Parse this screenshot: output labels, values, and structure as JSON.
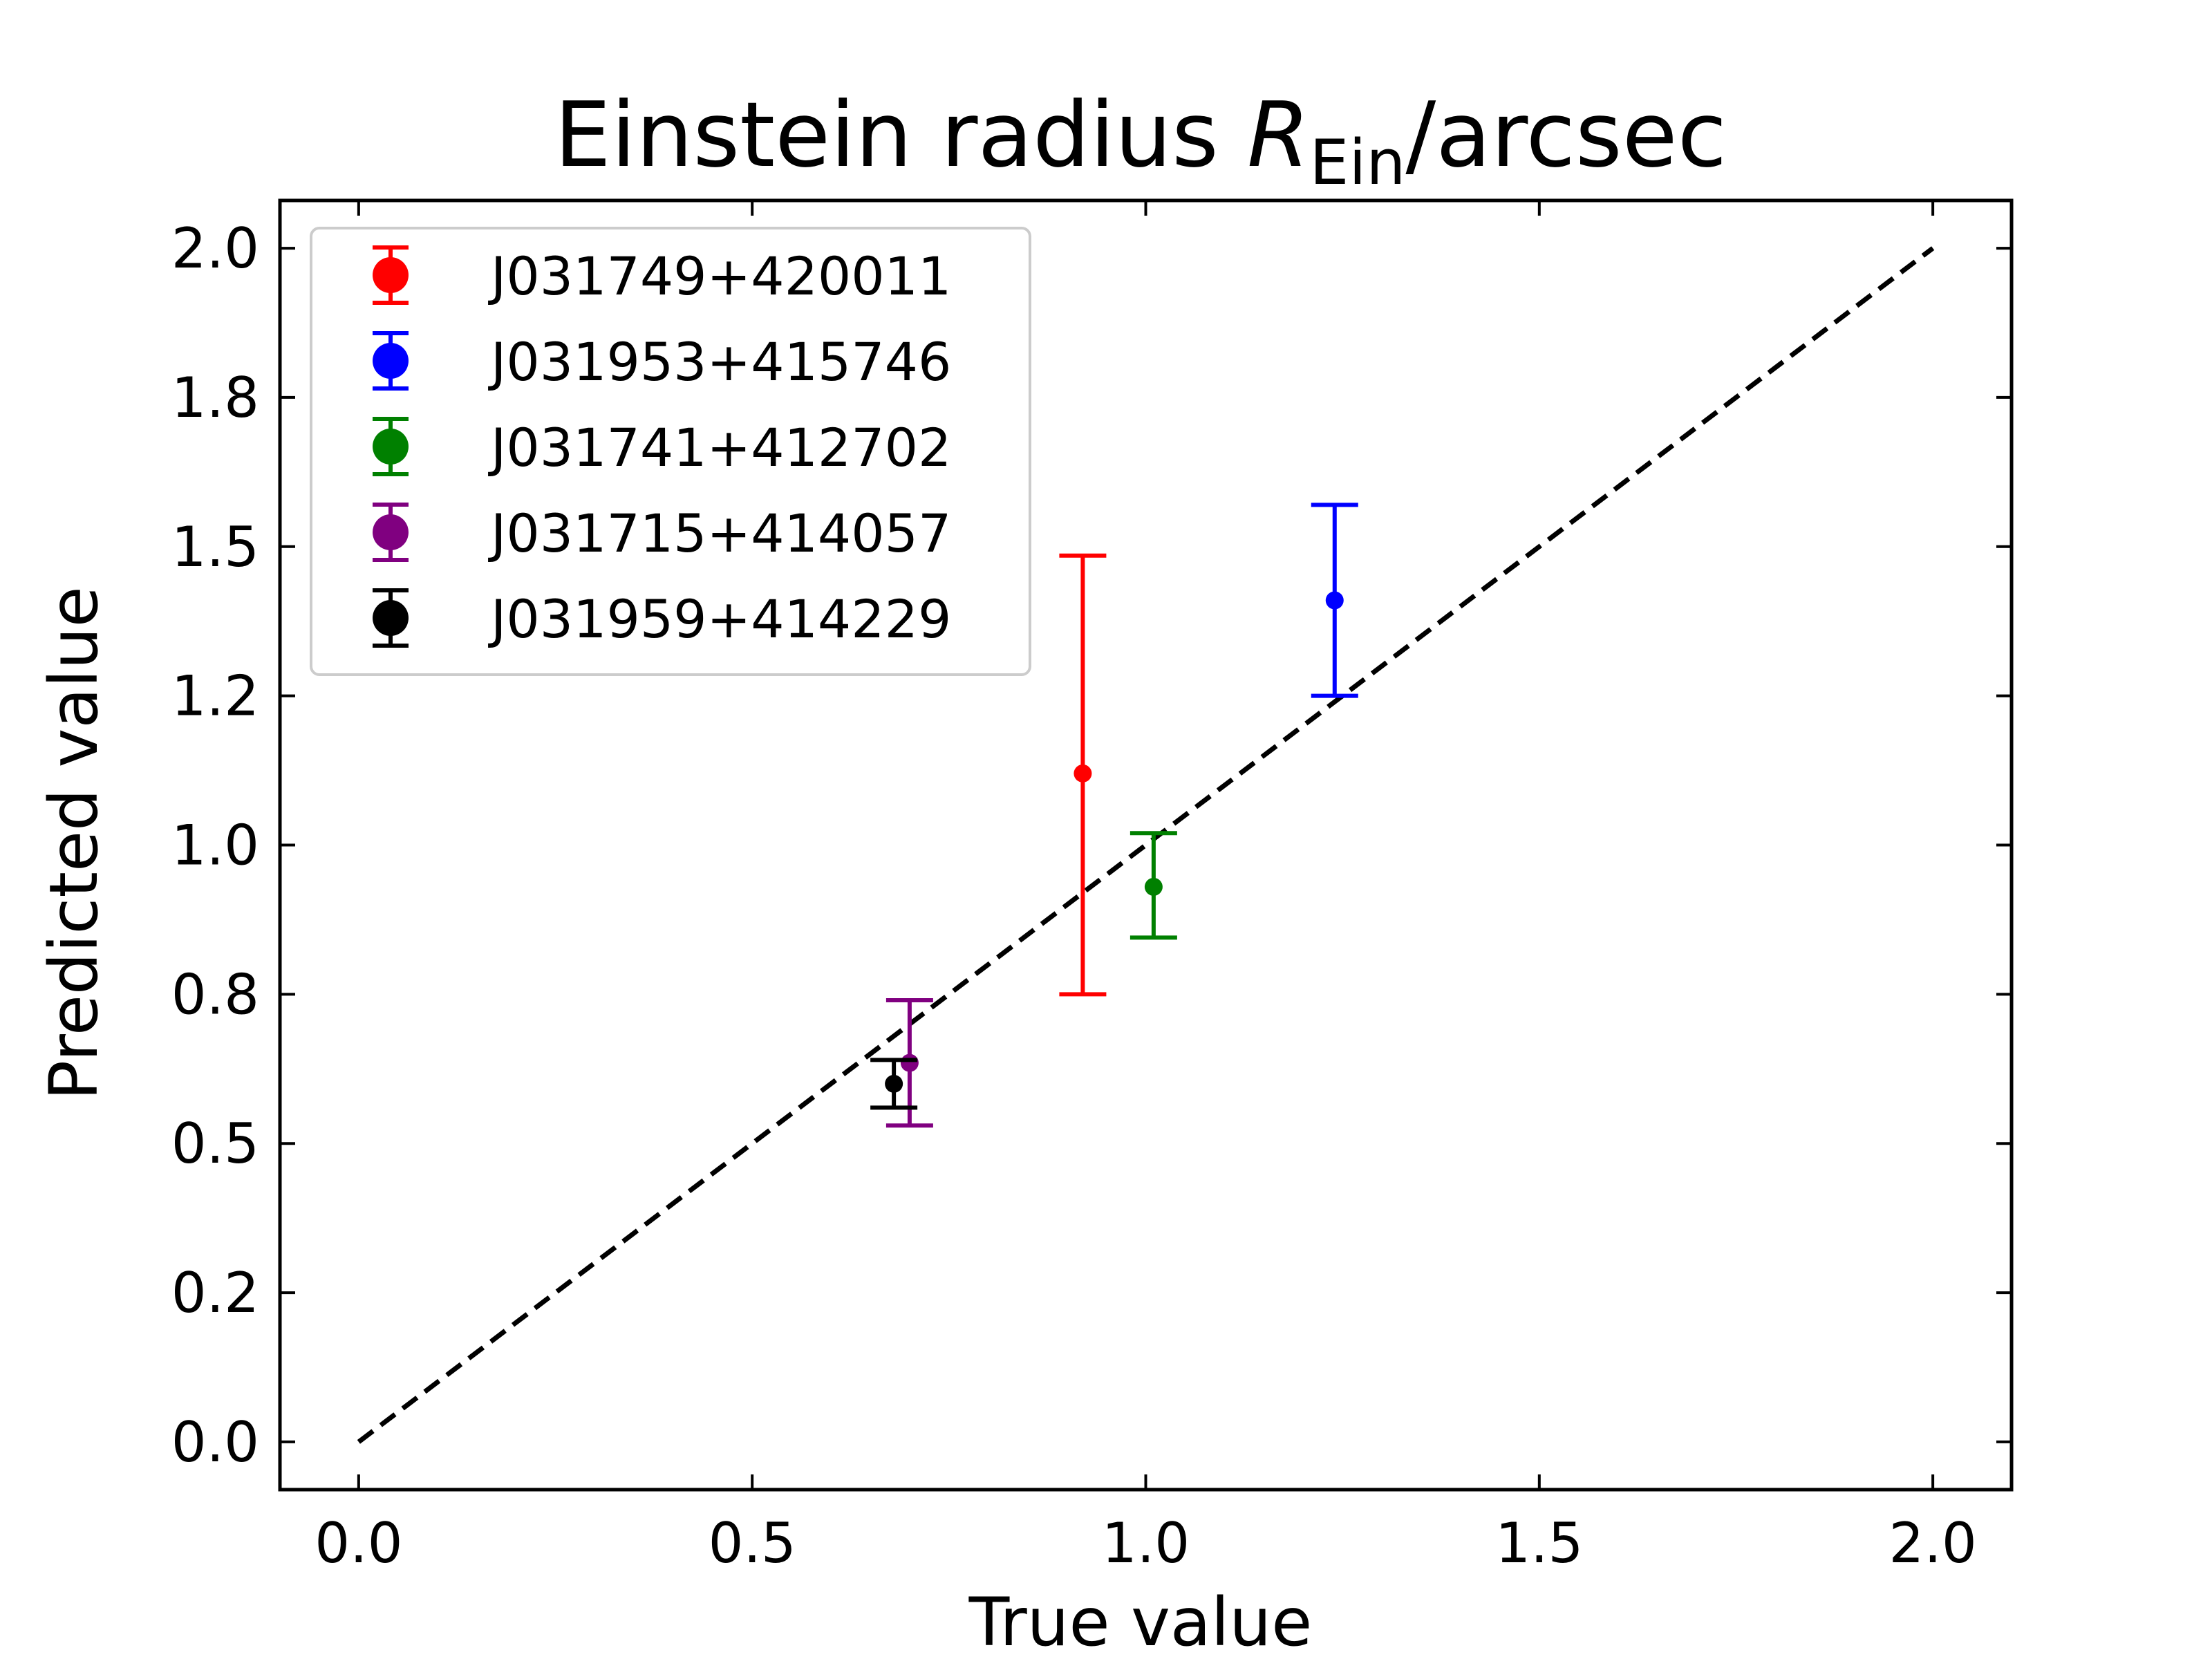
{
  "chart_data": {
    "type": "scatter",
    "title": {
      "main": "Einstein radius ",
      "symbol": "R",
      "subscript": "Ein",
      "suffix": "/arcsec"
    },
    "xlabel": "True value",
    "ylabel": "Predicted value",
    "xlim": [
      -0.1,
      2.1
    ],
    "ylim": [
      -0.08,
      2.08
    ],
    "xticks": [
      0.0,
      0.5,
      1.0,
      1.5,
      2.0
    ],
    "xtick_labels": [
      "0.0",
      "0.5",
      "1.0",
      "1.5",
      "2.0"
    ],
    "yticks": [
      0.0,
      0.25,
      0.5,
      0.75,
      1.0,
      1.25,
      1.5,
      1.75,
      2.0
    ],
    "ytick_labels": [
      "0.0",
      "0.2",
      "0.5",
      "0.8",
      "1.0",
      "1.2",
      "1.5",
      "1.8",
      "2.0"
    ],
    "reference_line": {
      "x": [
        0,
        2
      ],
      "y": [
        0,
        2
      ],
      "style": "dashed",
      "color": "#000000"
    },
    "legend_position": "upper-left",
    "grid": false,
    "series": [
      {
        "name": "J031749+420011",
        "color": "#ff0000",
        "x": 0.92,
        "y": 1.12,
        "yerr_low": 0.75,
        "yerr_high": 1.485
      },
      {
        "name": "J031953+415746",
        "color": "#0000ff",
        "x": 1.24,
        "y": 1.41,
        "yerr_low": 1.25,
        "yerr_high": 1.57
      },
      {
        "name": "J031741+412702",
        "color": "#008000",
        "x": 1.01,
        "y": 0.93,
        "yerr_low": 0.845,
        "yerr_high": 1.02
      },
      {
        "name": "J031715+414057",
        "color": "#800080",
        "x": 0.7,
        "y": 0.635,
        "yerr_low": 0.53,
        "yerr_high": 0.74
      },
      {
        "name": "J031959+414229",
        "color": "#000000",
        "x": 0.68,
        "y": 0.6,
        "yerr_low": 0.56,
        "yerr_high": 0.64
      }
    ]
  }
}
